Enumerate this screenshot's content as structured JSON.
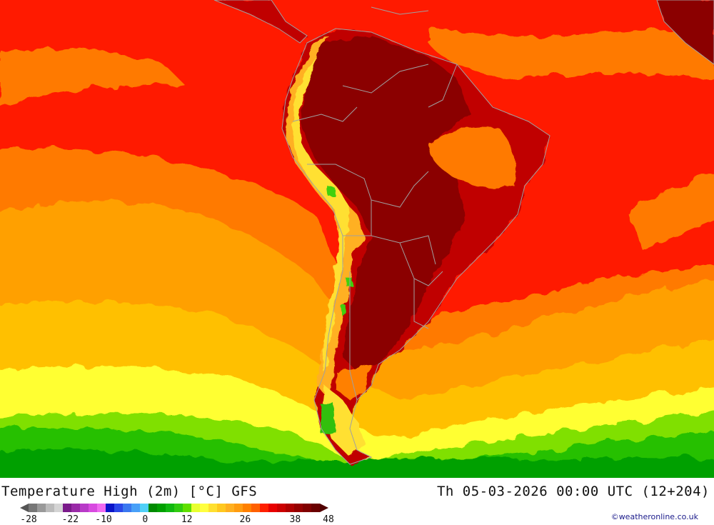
{
  "map": {
    "title": "Temperature High (2m) [°C] GFS",
    "datetime": "Th 05-03-2026 00:00 UTC (12+204)",
    "credit": "©weatheronline.co.uk",
    "colors": {
      "ocean_hot": "#ff1a00",
      "ocean_warm": "#ff7a00",
      "ocean_mild": "#ffa000",
      "ocean_cool": "#ffd000",
      "ocean_cold": "#ffff30",
      "ocean_green_light": "#7ee000",
      "ocean_green": "#20c000",
      "ocean_green_dark": "#009000",
      "land_hot": "#8b0000",
      "land_very_hot": "#a00000",
      "border": "#a0a0a0"
    },
    "colorbar": {
      "colors": [
        "#555555",
        "#777777",
        "#999999",
        "#bbbbbb",
        "#d4d4d4",
        "#7a1a8a",
        "#9a2aa8",
        "#b83ac8",
        "#d84ae0",
        "#f06af0",
        "#0a14c8",
        "#2a48e8",
        "#3a78f0",
        "#48a0f8",
        "#50d0f8",
        "#008a00",
        "#00a000",
        "#10b810",
        "#30cc10",
        "#60e000",
        "#e8ff30",
        "#ffff40",
        "#ffe030",
        "#ffc820",
        "#ffb020",
        "#ff9c10",
        "#ff8000",
        "#ff6000",
        "#ff2000",
        "#e80000",
        "#cc0000",
        "#b00000",
        "#960000",
        "#800000",
        "#6a0000",
        "#500000"
      ],
      "ticks": [
        {
          "label": "-28",
          "index": 0
        },
        {
          "label": "-22",
          "index": 5
        },
        {
          "label": "-10",
          "index": 9
        },
        {
          "label": "0",
          "index": 14
        },
        {
          "label": "12",
          "index": 19
        },
        {
          "label": "26",
          "index": 26
        },
        {
          "label": "38",
          "index": 32
        },
        {
          "label": "48",
          "index": 36
        }
      ]
    }
  }
}
